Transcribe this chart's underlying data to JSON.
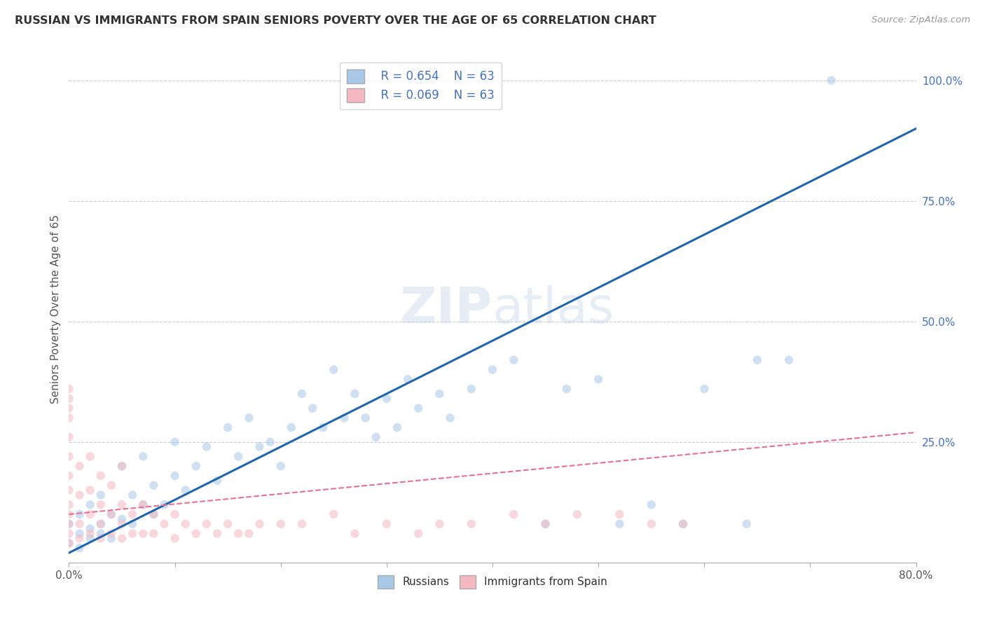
{
  "title": "RUSSIAN VS IMMIGRANTS FROM SPAIN SENIORS POVERTY OVER THE AGE OF 65 CORRELATION CHART",
  "source": "Source: ZipAtlas.com",
  "ylabel": "Seniors Poverty Over the Age of 65",
  "xmin": 0.0,
  "xmax": 0.8,
  "ymin": 0.0,
  "ymax": 1.05,
  "legend_russian_R": "R = 0.654",
  "legend_spanish_R": "R = 0.069",
  "legend_N": "N = 63",
  "russian_color": "#a8c8e8",
  "spanish_color": "#f4b8c0",
  "russian_line_color": "#2166ac",
  "spanish_line_color": "#e87090",
  "russian_trend_x0": 0.0,
  "russian_trend_y0": 0.02,
  "russian_trend_x1": 0.8,
  "russian_trend_y1": 0.9,
  "spanish_trend_x0": 0.0,
  "spanish_trend_y0": 0.1,
  "spanish_trend_x1": 0.8,
  "spanish_trend_y1": 0.27,
  "russians_scatter_x": [
    0.0,
    0.0,
    0.01,
    0.01,
    0.01,
    0.02,
    0.02,
    0.02,
    0.03,
    0.03,
    0.03,
    0.04,
    0.04,
    0.05,
    0.05,
    0.06,
    0.06,
    0.07,
    0.07,
    0.08,
    0.08,
    0.09,
    0.1,
    0.1,
    0.11,
    0.12,
    0.13,
    0.14,
    0.15,
    0.16,
    0.17,
    0.18,
    0.19,
    0.2,
    0.21,
    0.22,
    0.23,
    0.24,
    0.25,
    0.26,
    0.27,
    0.28,
    0.29,
    0.3,
    0.31,
    0.32,
    0.33,
    0.35,
    0.36,
    0.38,
    0.4,
    0.42,
    0.45,
    0.47,
    0.5,
    0.52,
    0.55,
    0.58,
    0.6,
    0.64,
    0.65,
    0.68,
    0.72
  ],
  "russians_scatter_y": [
    0.04,
    0.08,
    0.06,
    0.1,
    0.03,
    0.07,
    0.12,
    0.05,
    0.08,
    0.14,
    0.06,
    0.1,
    0.05,
    0.09,
    0.2,
    0.14,
    0.08,
    0.12,
    0.22,
    0.1,
    0.16,
    0.12,
    0.18,
    0.25,
    0.15,
    0.2,
    0.24,
    0.17,
    0.28,
    0.22,
    0.3,
    0.24,
    0.25,
    0.2,
    0.28,
    0.35,
    0.32,
    0.28,
    0.4,
    0.3,
    0.35,
    0.3,
    0.26,
    0.34,
    0.28,
    0.38,
    0.32,
    0.35,
    0.3,
    0.36,
    0.4,
    0.42,
    0.08,
    0.36,
    0.38,
    0.08,
    0.12,
    0.08,
    0.36,
    0.08,
    0.42,
    0.42,
    1.0
  ],
  "spanish_scatter_x": [
    0.0,
    0.0,
    0.0,
    0.0,
    0.0,
    0.0,
    0.0,
    0.0,
    0.0,
    0.0,
    0.0,
    0.0,
    0.0,
    0.01,
    0.01,
    0.01,
    0.01,
    0.02,
    0.02,
    0.02,
    0.02,
    0.03,
    0.03,
    0.03,
    0.03,
    0.04,
    0.04,
    0.04,
    0.05,
    0.05,
    0.05,
    0.05,
    0.06,
    0.06,
    0.07,
    0.07,
    0.08,
    0.08,
    0.09,
    0.1,
    0.1,
    0.11,
    0.12,
    0.13,
    0.14,
    0.15,
    0.16,
    0.17,
    0.18,
    0.2,
    0.22,
    0.25,
    0.27,
    0.3,
    0.33,
    0.35,
    0.38,
    0.42,
    0.45,
    0.48,
    0.52,
    0.55,
    0.58
  ],
  "spanish_scatter_y": [
    0.04,
    0.06,
    0.08,
    0.1,
    0.12,
    0.15,
    0.18,
    0.22,
    0.26,
    0.3,
    0.32,
    0.34,
    0.36,
    0.05,
    0.08,
    0.14,
    0.2,
    0.06,
    0.1,
    0.15,
    0.22,
    0.05,
    0.08,
    0.12,
    0.18,
    0.06,
    0.1,
    0.16,
    0.05,
    0.08,
    0.12,
    0.2,
    0.06,
    0.1,
    0.06,
    0.12,
    0.06,
    0.1,
    0.08,
    0.05,
    0.1,
    0.08,
    0.06,
    0.08,
    0.06,
    0.08,
    0.06,
    0.06,
    0.08,
    0.08,
    0.08,
    0.1,
    0.06,
    0.08,
    0.06,
    0.08,
    0.08,
    0.1,
    0.08,
    0.1,
    0.1,
    0.08,
    0.08
  ]
}
